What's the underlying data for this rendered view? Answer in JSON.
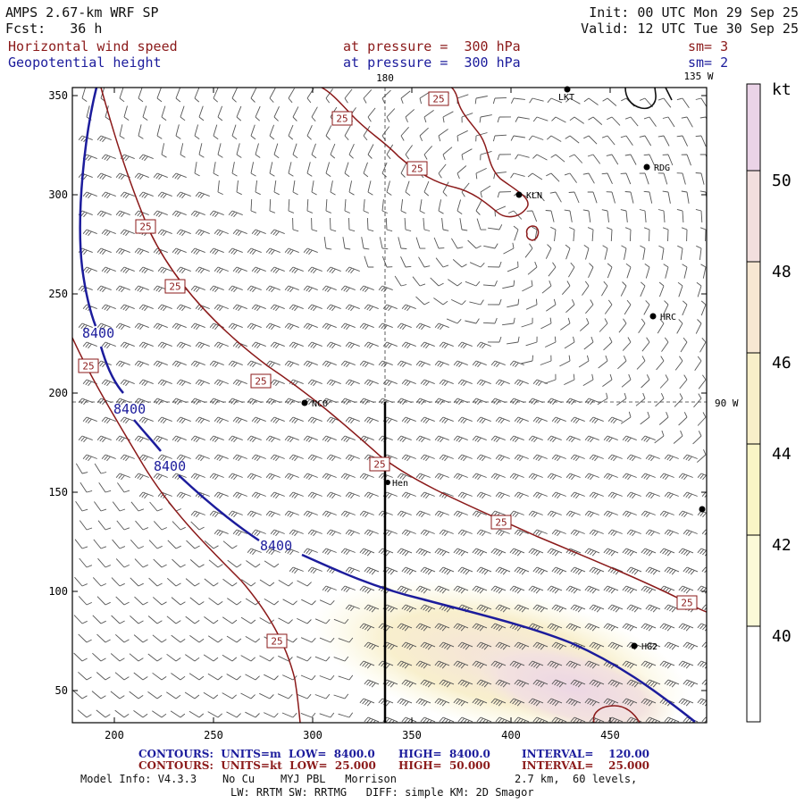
{
  "header": {
    "model": "AMPS 2.67-km WRF SP",
    "init": "Init: 00 UTC Mon 29 Sep 25",
    "fcst": "Fcst:   36 h",
    "valid": "Valid: 12 UTC Tue 30 Sep 25",
    "field1": "Horizontal wind speed",
    "field1_level": "at pressure =  300 hPa",
    "field1_sm": "sm= 3",
    "field2": "Geopotential height",
    "field2_level": "at pressure =  300 hPa",
    "field2_sm": "sm= 2"
  },
  "map": {
    "lon_180": "180",
    "lon_135w": "135 W",
    "lat_90w": "90 W",
    "y_ticks": [
      "350",
      "300",
      "250",
      "200",
      "150",
      "100",
      "50"
    ],
    "x_ticks": [
      "200",
      "250",
      "300",
      "350",
      "400",
      "450"
    ],
    "stations": [
      "LKT",
      "RDG",
      "KLN",
      "HRC",
      "NCO",
      "Hen",
      "HG2"
    ],
    "wind_contour_label": "25",
    "height_contour_label": "8400"
  },
  "colorbar": {
    "unit": "kt",
    "labels": [
      "50",
      "48",
      "46",
      "44",
      "42",
      "40"
    ],
    "colors": [
      "#ead3e7",
      "#f2dfde",
      "#f7e7d2",
      "#f8efc9",
      "#f9f5c6",
      "#fbfad8",
      "#ffffff"
    ]
  },
  "footer": {
    "c1_a": "CONTOURS:  UNITS=m  LOW=  8400.0",
    "c1_b": "HIGH=  8400.0",
    "c1_c": "INTERVAL=    120.00",
    "c2_a": "CONTOURS:  UNITS=kt  LOW=  25.000",
    "c2_b": "HIGH=  50.000",
    "c2_c": "INTERVAL=    25.000",
    "info1": "Model Info: V4.3.3    No Cu    MYJ PBL   Morrison",
    "info1b": "2.7 km,  60 levels,",
    "info2": "LW: RRTM SW: RRTMG   DIFF: simple KM: 2D Smagor"
  }
}
